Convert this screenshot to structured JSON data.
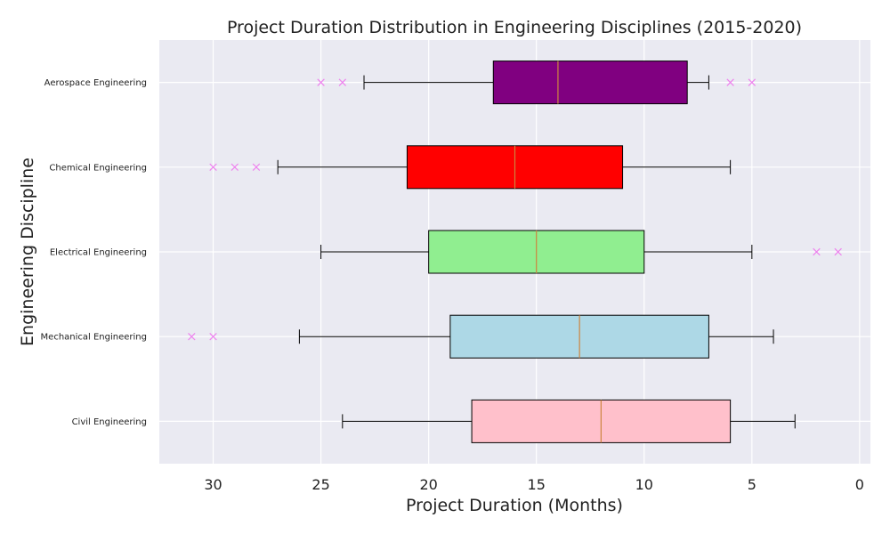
{
  "chart_data": {
    "type": "boxplot",
    "orientation": "horizontal",
    "title": "Project Duration Distribution in Engineering Disciplines (2015-2020)",
    "xlabel": "Project Duration (Months)",
    "ylabel": "Engineering Discipline",
    "xlim": [
      32.5,
      -0.5
    ],
    "x_inverted": true,
    "xticks": [
      30,
      25,
      20,
      15,
      10,
      5,
      0
    ],
    "grid": true,
    "background": "#eaeaf2",
    "outlier_marker": "x",
    "outlier_color": "#ee82ee",
    "median_color": "#cd853f",
    "categories": [
      "Civil Engineering",
      "Mechanical Engineering",
      "Electrical Engineering",
      "Chemical Engineering",
      "Aerospace Engineering"
    ],
    "series": [
      {
        "category": "Civil Engineering",
        "whisker_low": 3,
        "q1": 6,
        "median": 12,
        "q3": 18,
        "whisker_high": 24,
        "outliers": [],
        "color": "#ffc0cb"
      },
      {
        "category": "Mechanical Engineering",
        "whisker_low": 4,
        "q1": 7,
        "median": 13,
        "q3": 19,
        "whisker_high": 26,
        "outliers": [
          30,
          31
        ],
        "color": "#add8e6"
      },
      {
        "category": "Electrical Engineering",
        "whisker_low": 5,
        "q1": 10,
        "median": 15,
        "q3": 20,
        "whisker_high": 25,
        "outliers": [
          2,
          1
        ],
        "color": "#90ee90"
      },
      {
        "category": "Chemical Engineering",
        "whisker_low": 6,
        "q1": 11,
        "median": 16,
        "q3": 21,
        "whisker_high": 27,
        "outliers": [
          28,
          29,
          30
        ],
        "color": "#ff0000"
      },
      {
        "category": "Aerospace Engineering",
        "whisker_low": 7,
        "q1": 8,
        "median": 14,
        "q3": 17,
        "whisker_high": 23,
        "outliers": [
          24,
          25,
          6,
          5
        ],
        "color": "#800080"
      }
    ]
  }
}
